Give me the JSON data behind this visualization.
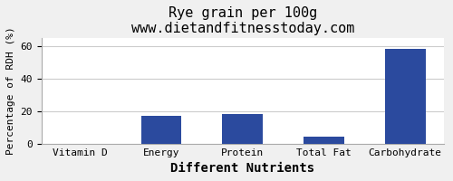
{
  "title": "Rye grain per 100g",
  "subtitle": "www.dietandfitnesstoday.com",
  "xlabel": "Different Nutrients",
  "ylabel": "Percentage of RDH (%)",
  "categories": [
    "Vitamin D",
    "Energy",
    "Protein",
    "Total Fat",
    "Carbohydrate"
  ],
  "values": [
    0,
    17,
    18,
    4,
    58
  ],
  "bar_color": "#2b4a9e",
  "ylim": [
    0,
    65
  ],
  "yticks": [
    0,
    20,
    40,
    60
  ],
  "background_color": "#f0f0f0",
  "plot_bg_color": "#ffffff",
  "title_fontsize": 11,
  "subtitle_fontsize": 9,
  "xlabel_fontsize": 10,
  "ylabel_fontsize": 8,
  "tick_fontsize": 8,
  "border_color": "#aaaaaa"
}
